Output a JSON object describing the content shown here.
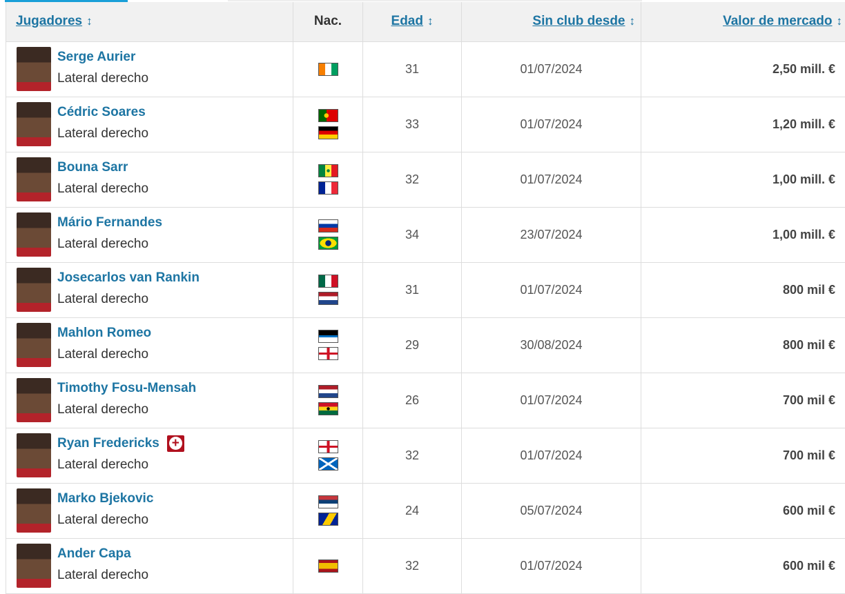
{
  "headers": {
    "players": "Jugadores",
    "nat": "Nac.",
    "age": "Edad",
    "since": "Sin club desde",
    "value": "Valor de mercado",
    "sort_icon": "↕"
  },
  "rows": [
    {
      "name": "Serge Aurier",
      "position": "Lateral derecho",
      "flags": [
        "flag-ivory-coast"
      ],
      "age": "31",
      "since": "01/07/2024",
      "value": "2,50 mill. €"
    },
    {
      "name": "Cédric Soares",
      "position": "Lateral derecho",
      "flags": [
        "flag-portugal",
        "flag-germany"
      ],
      "age": "33",
      "since": "01/07/2024",
      "value": "1,20 mill. €"
    },
    {
      "name": "Bouna Sarr",
      "position": "Lateral derecho",
      "flags": [
        "flag-senegal",
        "flag-france"
      ],
      "age": "32",
      "since": "01/07/2024",
      "value": "1,00 mill. €"
    },
    {
      "name": "Mário Fernandes",
      "position": "Lateral derecho",
      "flags": [
        "flag-russia",
        "flag-brazil"
      ],
      "age": "34",
      "since": "23/07/2024",
      "value": "1,00 mill. €"
    },
    {
      "name": "Josecarlos van Rankin",
      "position": "Lateral derecho",
      "flags": [
        "flag-mexico",
        "flag-netherlands"
      ],
      "age": "31",
      "since": "01/07/2024",
      "value": "800 mil €"
    },
    {
      "name": "Mahlon Romeo",
      "position": "Lateral derecho",
      "flags": [
        "flag-antigua-barbuda",
        "flag-england"
      ],
      "age": "29",
      "since": "30/08/2024",
      "value": "800 mil €"
    },
    {
      "name": "Timothy Fosu-Mensah",
      "position": "Lateral derecho",
      "flags": [
        "flag-netherlands",
        "flag-ghana"
      ],
      "age": "26",
      "since": "01/07/2024",
      "value": "700 mil €"
    },
    {
      "name": "Ryan Fredericks",
      "position": "Lateral derecho",
      "flags": [
        "flag-england",
        "flag-scotland"
      ],
      "age": "32",
      "since": "01/07/2024",
      "value": "700 mil €",
      "injury_icon": "injury-icon"
    },
    {
      "name": "Marko Bjekovic",
      "position": "Lateral derecho",
      "flags": [
        "flag-serbia",
        "flag-bosnia"
      ],
      "age": "24",
      "since": "05/07/2024",
      "value": "600 mil €"
    },
    {
      "name": "Ander Capa",
      "position": "Lateral derecho",
      "flags": [
        "flag-spain"
      ],
      "age": "32",
      "since": "01/07/2024",
      "value": "600 mil €"
    }
  ],
  "colors": {
    "link": "#1d75a3",
    "header_bg": "#f1f1f1",
    "injury": "#b0101e",
    "tab_indicator": "#1a9fd8"
  }
}
